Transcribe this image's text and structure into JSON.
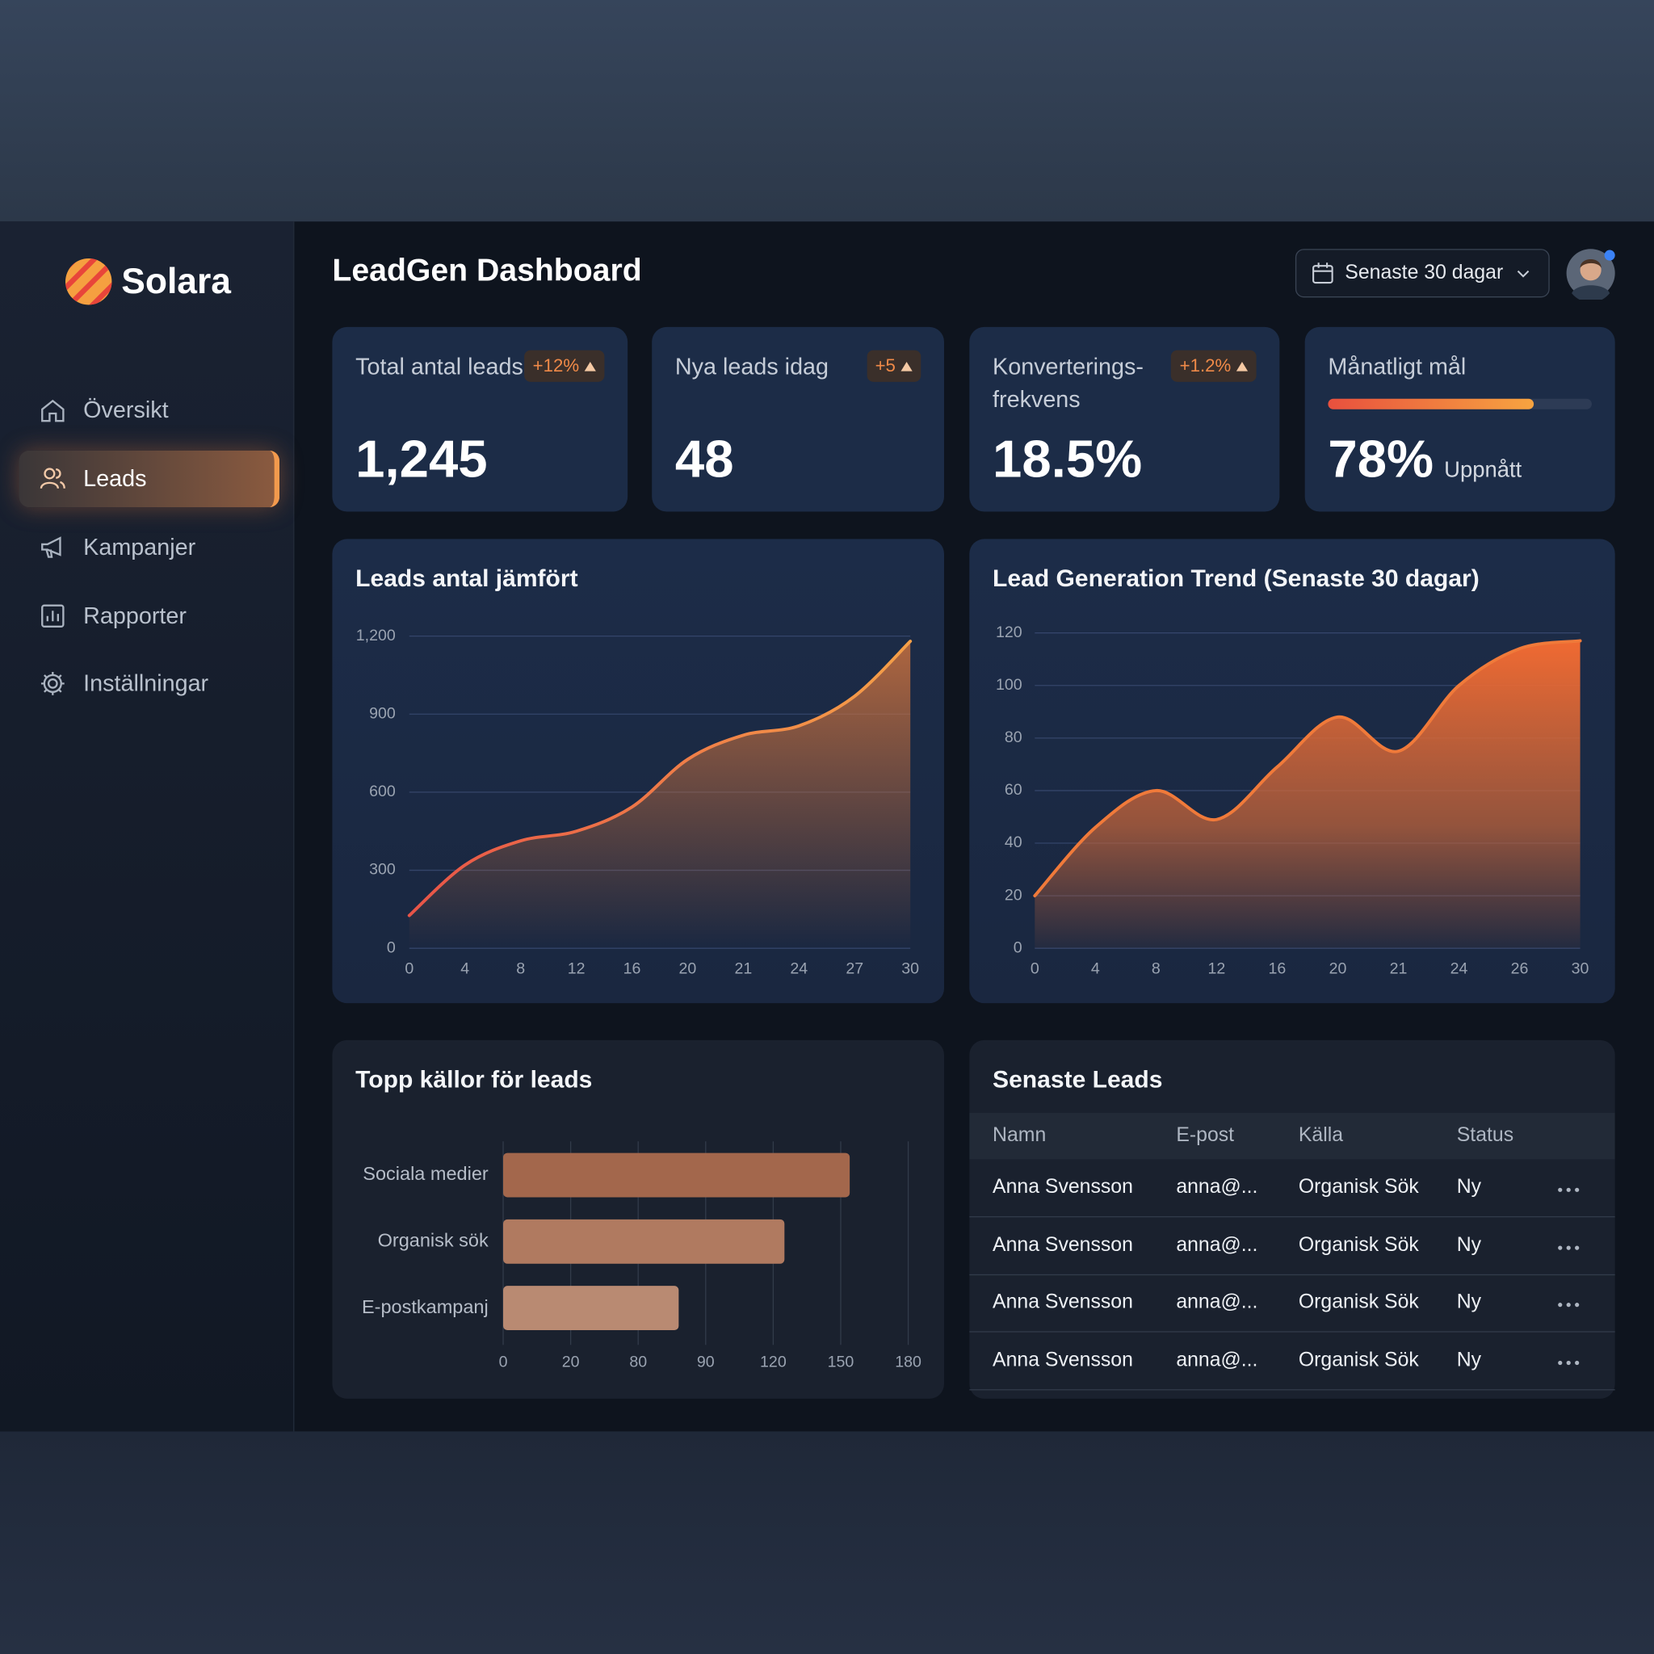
{
  "brand": "Solara",
  "nav": [
    "Översikt",
    "Leads",
    "Kampanjer",
    "Rapporter",
    "Inställningar"
  ],
  "header": {
    "title": "LeadGen Dashboard",
    "date_range": "Senaste 30 dagar"
  },
  "kpis": [
    {
      "label": "Total antal leads",
      "value": "1,245",
      "badge": "+12%"
    },
    {
      "label": "Nya leads idag",
      "value": "48",
      "badge": "+5"
    },
    {
      "label": "Konverterings-frekvens",
      "value": "18.5%",
      "badge": "+1.2%"
    },
    {
      "label": "Månatligt mål",
      "value": 78,
      "value_label": "78%",
      "note": "Uppnått"
    }
  ],
  "chart_data": [
    {
      "type": "line",
      "title": "Leads antal jämfört",
      "categories": [
        "0",
        "4",
        "8",
        "12",
        "16",
        "20",
        "21",
        "24",
        "27",
        "30"
      ],
      "values": [
        126,
        320,
        413,
        450,
        543,
        726,
        819,
        855,
        969,
        1180
      ],
      "color": "#f08a48",
      "ylim": [
        0,
        1200
      ],
      "yticks": [
        0,
        300,
        600,
        900,
        {
          "value": 1200,
          "label": "1,200"
        }
      ],
      "grid": true
    },
    {
      "type": "line",
      "title": "Lead Generation Trend (Senaste 30 dagar)",
      "categories": [
        "0",
        "4",
        "8",
        "12",
        "16",
        "20",
        "21",
        "24",
        "26",
        "30"
      ],
      "values": [
        20,
        46,
        60,
        49,
        69,
        88,
        75,
        100,
        114,
        117
      ],
      "color": "#f07a3a",
      "ylim": [
        0,
        120
      ],
      "yticks": [
        0,
        20,
        40,
        60,
        80,
        100,
        120
      ],
      "grid": true
    },
    {
      "type": "bar",
      "orientation": "horizontal",
      "title": "Topp källor för leads",
      "categories": [
        "Sociala medier",
        "Organisk sök",
        "E-postkampanj"
      ],
      "values": [
        154,
        125,
        86
      ],
      "colors": [
        "#a3674c",
        "#b07a60",
        "#b98a72"
      ],
      "xlim": [
        0,
        180
      ],
      "xticks": [
        0,
        20,
        80,
        90,
        120,
        150,
        180
      ],
      "grid": true
    }
  ],
  "table": {
    "title": "Senaste Leads",
    "columns": [
      "Namn",
      "E-post",
      "Källa",
      "Status"
    ],
    "rows": [
      [
        "Anna Svensson",
        "anna@...",
        "Organisk Sök",
        "Ny"
      ],
      [
        "Anna Svensson",
        "anna@...",
        "Organisk Sök",
        "Ny"
      ],
      [
        "Anna Svensson",
        "anna@...",
        "Organisk Sök",
        "Ny"
      ],
      [
        "Anna Svensson",
        "anna@...",
        "Organisk Sök",
        "Ny"
      ]
    ]
  }
}
